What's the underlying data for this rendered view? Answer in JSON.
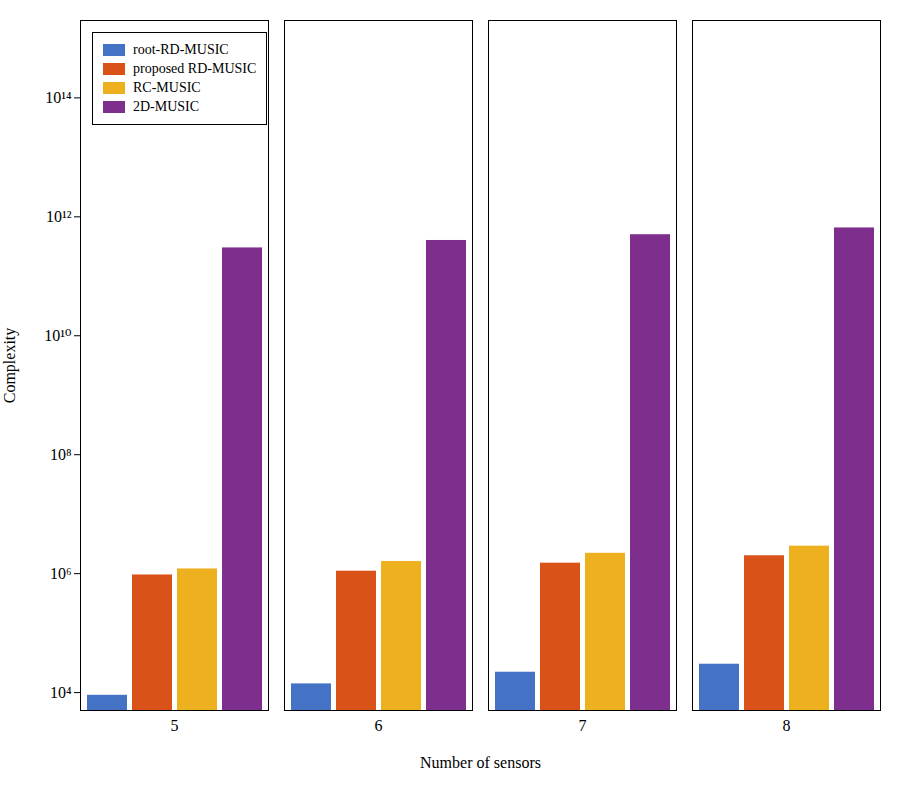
{
  "chart_data": {
    "type": "bar",
    "categories": [
      5,
      6,
      7,
      8
    ],
    "series": [
      {
        "name": "root-RD-MUSIC",
        "color": "#4472C4",
        "values": [
          9000,
          14000,
          22000,
          30000
        ]
      },
      {
        "name": "proposed RD-MUSIC",
        "color": "#D95319",
        "values": [
          950000,
          1100000,
          1500000,
          2000000
        ]
      },
      {
        "name": "RC-MUSIC",
        "color": "#EDB120",
        "values": [
          1200000,
          1600000,
          2200000,
          2900000
        ]
      },
      {
        "name": "2D-MUSIC",
        "color": "#7E2F8E",
        "values": [
          300000000000.0,
          400000000000.0,
          500000000000.0,
          650000000000.0
        ]
      }
    ],
    "xlabel": "Number of sensors",
    "ylabel": "Complexity",
    "log": "y",
    "ylim": [
      5000,
      2000000000000000.0
    ],
    "yticks": [
      {
        "value": 10000,
        "label": "10⁴"
      },
      {
        "value": 1000000,
        "label": "10⁶"
      },
      {
        "value": 100000000,
        "label": "10⁸"
      },
      {
        "value": 10000000000,
        "label": "10¹⁰"
      },
      {
        "value": 1000000000000,
        "label": "10¹²"
      },
      {
        "value": 100000000000000,
        "label": "10¹⁴"
      }
    ],
    "legend": "upper left",
    "grid": false
  }
}
